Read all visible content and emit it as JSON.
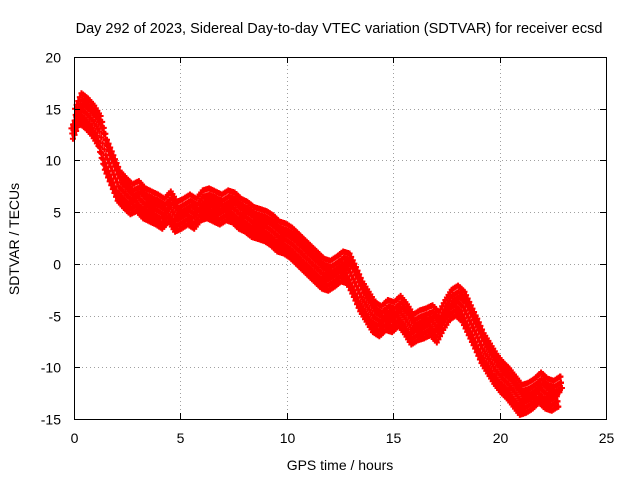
{
  "chart_data": {
    "type": "scatter",
    "title": "Day 292 of 2023, Sidereal Day-to-day VTEC variation (SDTVAR) for receiver ecsd",
    "xlabel": "GPS time / hours",
    "ylabel": "SDTVAR / TECUs",
    "xlim": [
      0,
      25
    ],
    "ylim": [
      -15,
      20
    ],
    "xticks": [
      "0",
      "5",
      "10",
      "15",
      "20",
      "25"
    ],
    "yticks": [
      "-15",
      "-10",
      "-5",
      "0",
      "5",
      "10",
      "15",
      "20"
    ],
    "grid": true,
    "marker": "+",
    "color": "#ff0000",
    "series": [
      {
        "name": "ecsd",
        "x": [
          0.0,
          0.3,
          0.6,
          0.9,
          1.2,
          1.5,
          1.8,
          2.1,
          2.4,
          2.7,
          3.0,
          3.3,
          3.6,
          3.9,
          4.2,
          4.5,
          4.8,
          5.1,
          5.4,
          5.7,
          6.0,
          6.3,
          6.6,
          6.9,
          7.2,
          7.5,
          7.8,
          8.1,
          8.4,
          8.7,
          9.0,
          9.3,
          9.6,
          9.9,
          10.2,
          10.5,
          10.8,
          11.1,
          11.4,
          11.7,
          12.0,
          12.3,
          12.6,
          12.9,
          13.2,
          13.5,
          13.8,
          14.1,
          14.4,
          14.7,
          15.0,
          15.3,
          15.6,
          15.9,
          16.2,
          16.5,
          16.8,
          17.1,
          17.4,
          17.7,
          18.0,
          18.3,
          18.6,
          18.9,
          19.2,
          19.5,
          19.8,
          20.1,
          20.4,
          20.7,
          21.0,
          21.3,
          21.6,
          21.9,
          22.2,
          22.5,
          22.8
        ],
        "y": [
          13.5,
          15.0,
          14.5,
          13.8,
          12.8,
          10.5,
          9.0,
          7.5,
          6.8,
          6.2,
          6.5,
          5.8,
          5.5,
          5.2,
          4.8,
          5.5,
          4.5,
          4.8,
          5.2,
          4.8,
          5.6,
          5.8,
          5.5,
          5.2,
          5.6,
          5.4,
          4.8,
          4.5,
          4.0,
          3.8,
          3.6,
          3.2,
          2.6,
          2.4,
          2.0,
          1.4,
          0.8,
          0.2,
          -0.4,
          -1.0,
          -1.2,
          -0.8,
          -0.3,
          -0.5,
          -1.8,
          -3.2,
          -4.2,
          -5.2,
          -5.6,
          -5.0,
          -5.2,
          -4.6,
          -5.4,
          -6.4,
          -6.0,
          -5.8,
          -5.5,
          -6.2,
          -5.0,
          -4.0,
          -3.6,
          -4.2,
          -5.5,
          -6.8,
          -8.2,
          -9.2,
          -10.2,
          -11.0,
          -11.6,
          -12.4,
          -13.2,
          -13.0,
          -12.6,
          -12.0,
          -12.6,
          -12.8,
          -12.4
        ]
      }
    ]
  }
}
